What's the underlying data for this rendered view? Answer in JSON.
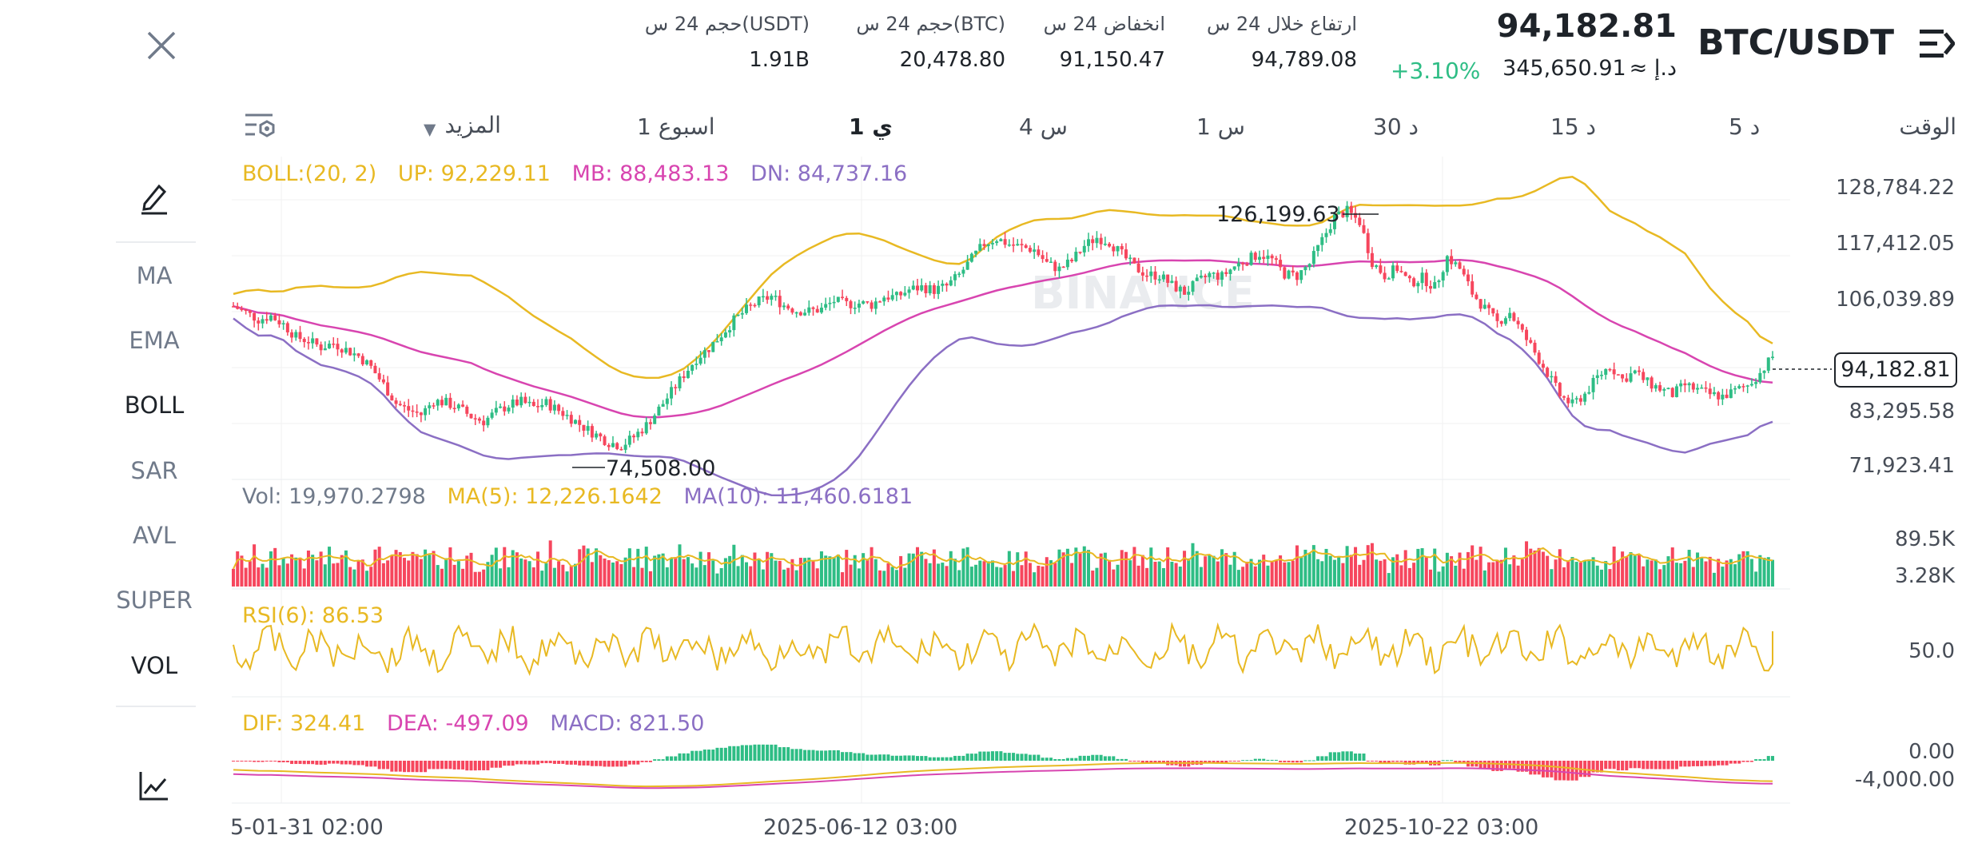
{
  "header": {
    "pair": "BTC/USDT",
    "last_price": "94,182.81",
    "change_pct": "+3.10%",
    "approx_prefix": "≈ د.إ",
    "approx_value": "345,650.91",
    "stats": [
      {
        "label": "ارتفاع خلال 24 س",
        "value": "94,789.08"
      },
      {
        "label": "انخفاض 24 س",
        "value": "91,150.47"
      },
      {
        "label": "حجم 24 س(BTC)",
        "value": "20,478.80"
      },
      {
        "label": "حجم 24 س(USDT)",
        "value": "1.91B"
      }
    ]
  },
  "timeframes": {
    "time_label": "الوقت",
    "items": [
      "5 د",
      "15 د",
      "30 د",
      "1 س",
      "4 س",
      "1 ي",
      "1 اسبوع"
    ],
    "selected": "1 ي",
    "more_label": "المزيد"
  },
  "indicators": {
    "items": [
      "MA",
      "EMA",
      "BOLL",
      "SAR",
      "AVL",
      "SUPER",
      "VOL"
    ],
    "active": [
      "BOLL",
      "VOL"
    ]
  },
  "main_legend": {
    "boll": "BOLL:(20, 2)",
    "up": "UP: 92,229.11",
    "mb": "MB: 88,483.13",
    "dn": "DN: 84,737.16"
  },
  "vol_legend": {
    "vol": "Vol: 19,970.2798",
    "ma5": "MA(5): 12,226.1642",
    "ma10": "MA(10): 11,460.6181"
  },
  "rsi_legend": {
    "rsi": "RSI(6): 86.53"
  },
  "macd_legend": {
    "dif": "DIF: 324.41",
    "dea": "DEA: -497.09",
    "macd": "MACD: 821.50"
  },
  "price_axis": [
    "128,784.22",
    "117,412.05",
    "106,039.89",
    "83,295.58",
    "71,923.41"
  ],
  "current_price_tag": "94,182.81",
  "high_marker": "126,199.63",
  "low_marker": "74,508.00",
  "vol_axis": [
    "89.5K",
    "3.28K"
  ],
  "rsi_axis": [
    "50.0"
  ],
  "macd_axis": [
    "0.00",
    "-4,000.00"
  ],
  "dates": [
    "5-01-31 02:00",
    "2025-06-12 03:00",
    "2025-10-22 03:00"
  ],
  "watermark": "BINANCE",
  "colors": {
    "up": "#2ebd85",
    "down": "#f6465d",
    "boll_up": "#e8b923",
    "boll_mb": "#d845b0",
    "boll_dn": "#8b6fc4",
    "change": "#2ebd85"
  },
  "chart_data": {
    "type": "candlestick",
    "price_range": [
      71923.41,
      128784.22
    ],
    "high": 126199.63,
    "low": 74508.0,
    "last": 94182.81,
    "boll": {
      "period": 20,
      "k": 2,
      "up": 92229.11,
      "mb": 88483.13,
      "dn": 84737.16
    },
    "close_series": [
      104500,
      103200,
      101800,
      102500,
      100800,
      98200,
      97400,
      96100,
      96900,
      95600,
      94300,
      92000,
      88400,
      84600,
      83200,
      82300,
      85100,
      84700,
      83600,
      81900,
      80900,
      82800,
      84200,
      84900,
      83800,
      84600,
      83100,
      81500,
      79700,
      78100,
      76600,
      75900,
      77700,
      80100,
      83400,
      86900,
      90500,
      93800,
      95900,
      98700,
      101600,
      103800,
      105500,
      106500,
      104700,
      103600,
      103500,
      103900,
      105600,
      104900,
      105100,
      104800,
      106500,
      106400,
      107900,
      108400,
      107800,
      108600,
      110900,
      114200,
      117300,
      118400,
      117200,
      116600,
      116100,
      113300,
      112100,
      113800,
      116900,
      118600,
      117700,
      115100,
      112500,
      111000,
      110800,
      108800,
      107300,
      109300,
      111000,
      110600,
      112700,
      114000,
      115300,
      114000,
      111100,
      110700,
      113200,
      118000,
      122800,
      124000,
      121800,
      113600,
      110800,
      112300,
      109200,
      110300,
      108400,
      114600,
      112200,
      107200,
      104000,
      101100,
      103300,
      99000,
      95000,
      90800,
      86200,
      84300,
      86500,
      89900,
      92300,
      89500,
      91000,
      88800,
      87600,
      86400,
      88300,
      87300,
      86400,
      86000,
      87100,
      88300,
      90800,
      94182
    ]
  }
}
